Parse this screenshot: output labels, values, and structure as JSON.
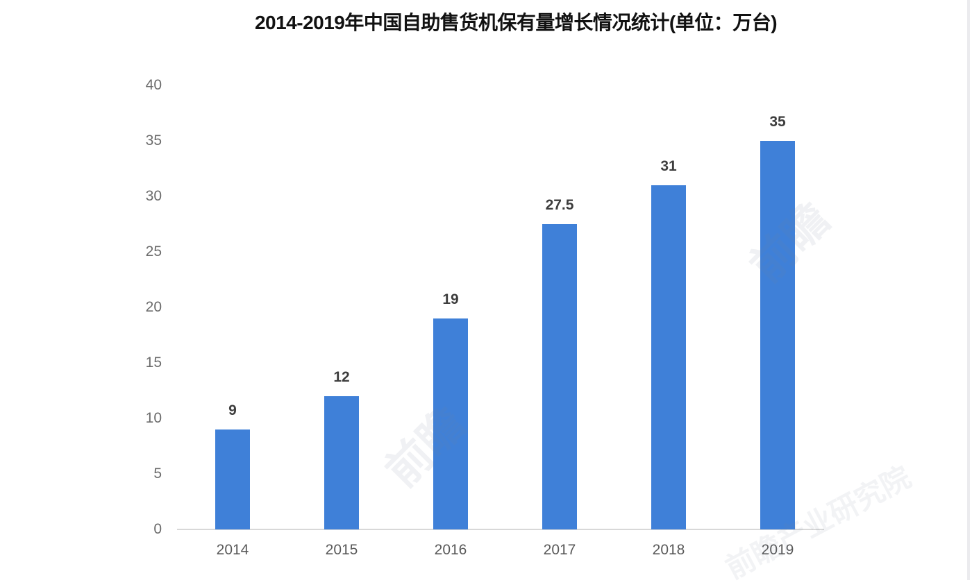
{
  "chart_data": {
    "type": "bar",
    "title": "2014-2019年中国自助售货机保有量增长情况统计(单位：万台)",
    "categories": [
      "2014",
      "2015",
      "2016",
      "2017",
      "2018",
      "2019"
    ],
    "values": [
      9,
      12,
      19,
      27.5,
      31,
      35
    ],
    "value_labels": [
      "9",
      "12",
      "19",
      "27.5",
      "31",
      "35"
    ],
    "xlabel": "",
    "ylabel": "",
    "ylim": [
      0,
      40
    ],
    "yticks": [
      0,
      5,
      10,
      15,
      20,
      25,
      30,
      35,
      40
    ],
    "grid": false,
    "legend_position": "none",
    "bar_color": "#3F80D8",
    "axis_line_color": "#D8D8D8",
    "title_color": "#111111",
    "ytick_color": "#6B6B6B",
    "xtick_color": "#595959",
    "value_label_color": "#3D3D3D",
    "background_color": "#FFFFFF"
  },
  "watermarks": [
    {
      "text": "前瞻"
    },
    {
      "text": "前瞻"
    },
    {
      "text": "前瞻产业研究院"
    }
  ]
}
